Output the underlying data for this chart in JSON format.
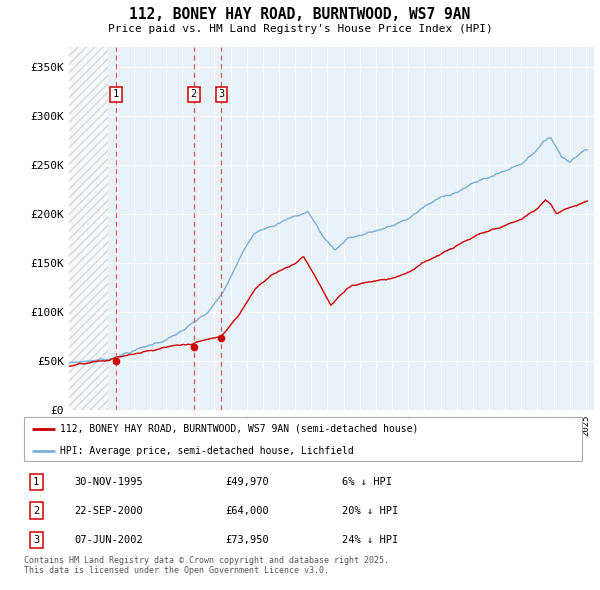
{
  "title": "112, BONEY HAY ROAD, BURNTWOOD, WS7 9AN",
  "subtitle": "Price paid vs. HM Land Registry's House Price Index (HPI)",
  "ylim": [
    0,
    370000
  ],
  "yticks": [
    0,
    50000,
    100000,
    150000,
    200000,
    250000,
    300000,
    350000
  ],
  "ytick_labels": [
    "£0",
    "£50K",
    "£100K",
    "£150K",
    "£200K",
    "£250K",
    "£300K",
    "£350K"
  ],
  "hpi_color": "#7bafd4",
  "price_color": "#cc0000",
  "vline_color": "#e06060",
  "transactions": [
    {
      "label": "1",
      "date": "30-NOV-1995",
      "year": 1995.92,
      "price": 49970,
      "pct": "6% ↓ HPI"
    },
    {
      "label": "2",
      "date": "22-SEP-2000",
      "year": 2000.73,
      "price": 64000,
      "pct": "20% ↓ HPI"
    },
    {
      "label": "3",
      "date": "07-JUN-2002",
      "year": 2002.44,
      "price": 73950,
      "pct": "24% ↓ HPI"
    }
  ],
  "legend_line1": "112, BONEY HAY ROAD, BURNTWOOD, WS7 9AN (semi-detached house)",
  "legend_line2": "HPI: Average price, semi-detached house, Lichfield",
  "footer": "Contains HM Land Registry data © Crown copyright and database right 2025.\nThis data is licensed under the Open Government Licence v3.0.",
  "table_rows": [
    [
      "1",
      "30-NOV-1995",
      "£49,970",
      "6% ↓ HPI"
    ],
    [
      "2",
      "22-SEP-2000",
      "£64,000",
      "20% ↓ HPI"
    ],
    [
      "3",
      "07-JUN-2002",
      "£73,950",
      "24% ↓ HPI"
    ]
  ]
}
